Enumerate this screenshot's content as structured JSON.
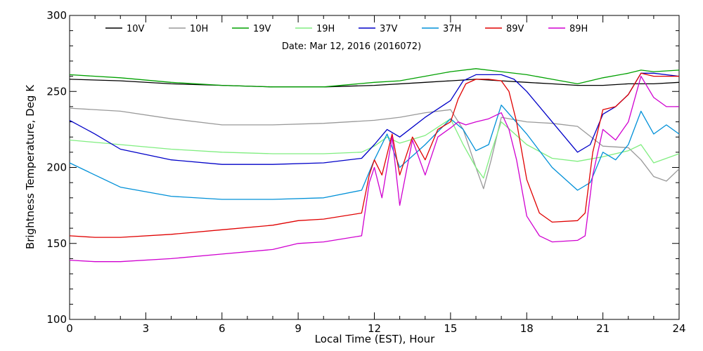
{
  "chart_data": {
    "type": "line",
    "subtitle": "Date: Mar 12, 2016 (2016072)",
    "xlabel": "Local Time (EST), Hour",
    "ylabel": "Brightness Temperature, Deg K",
    "xlim": [
      0,
      24
    ],
    "ylim": [
      100,
      300
    ],
    "xticks": [
      0,
      3,
      6,
      9,
      12,
      15,
      18,
      21,
      24
    ],
    "yticks": [
      100,
      150,
      200,
      250,
      300
    ],
    "xtick_labels": [
      "0",
      "3",
      "6",
      "9",
      "12",
      "15",
      "18",
      "21",
      "24"
    ],
    "ytick_labels": [
      "100",
      "150",
      "200",
      "250",
      "300"
    ],
    "grid": false,
    "legend_position": "top",
    "series": [
      {
        "name": "10V",
        "color": "#000000",
        "x": [
          0,
          2,
          4,
          6,
          8,
          10,
          12,
          14,
          15,
          16,
          17,
          18,
          19,
          20,
          21,
          22,
          23,
          24
        ],
        "y": [
          258,
          257,
          255,
          254,
          253,
          253,
          254,
          256,
          257,
          258,
          257,
          256,
          255,
          254,
          254,
          255,
          255,
          256
        ]
      },
      {
        "name": "10H",
        "color": "#999999",
        "x": [
          0,
          2,
          4,
          6,
          8,
          10,
          12,
          13,
          14,
          15,
          15.5,
          16,
          16.3,
          16.6,
          17,
          18,
          19,
          20,
          21,
          22,
          22.5,
          23,
          23.5,
          24
        ],
        "y": [
          239,
          237,
          232,
          228,
          228,
          229,
          231,
          233,
          236,
          238,
          225,
          200,
          186,
          205,
          233,
          230,
          229,
          227,
          214,
          213,
          205,
          194,
          191,
          199
        ]
      },
      {
        "name": "19V",
        "color": "#00a000",
        "x": [
          0,
          2,
          4,
          6,
          8,
          10,
          12,
          13,
          14,
          15,
          16,
          17,
          18,
          19,
          20,
          21,
          22,
          22.5,
          23,
          24
        ],
        "y": [
          261,
          259,
          256,
          254,
          253,
          253,
          256,
          257,
          260,
          263,
          265,
          263,
          261,
          258,
          255,
          259,
          262,
          264,
          263,
          264
        ]
      },
      {
        "name": "19H",
        "color": "#80ee80",
        "x": [
          0,
          2,
          4,
          6,
          8,
          10,
          11.5,
          12,
          12.5,
          13,
          14,
          15,
          15.5,
          16,
          16.3,
          16.6,
          17,
          18,
          19,
          20,
          21,
          22,
          22.5,
          23,
          24
        ],
        "y": [
          218,
          215,
          212,
          210,
          209,
          209,
          210,
          214,
          220,
          216,
          221,
          232,
          215,
          200,
          193,
          210,
          230,
          215,
          206,
          204,
          207,
          211,
          215,
          203,
          209
        ]
      },
      {
        "name": "37V",
        "color": "#0000c8",
        "x": [
          0,
          1,
          2,
          4,
          6,
          8,
          10,
          11.5,
          12,
          12.5,
          13,
          14,
          15,
          15.5,
          16,
          16.5,
          17,
          17.5,
          18,
          19,
          20,
          20.5,
          21,
          21.5,
          22,
          22.5,
          23,
          24
        ],
        "y": [
          231,
          222,
          212,
          205,
          202,
          202,
          203,
          206,
          215,
          225,
          220,
          233,
          244,
          257,
          261,
          261,
          261,
          258,
          250,
          230,
          210,
          215,
          235,
          240,
          248,
          262,
          262,
          260
        ]
      },
      {
        "name": "37H",
        "color": "#0090d8",
        "x": [
          0,
          1,
          2,
          4,
          6,
          8,
          10,
          11.5,
          12,
          12.5,
          13,
          14,
          15,
          15.5,
          16,
          16.5,
          17,
          18,
          19,
          20,
          20.5,
          21,
          21.5,
          22,
          22.5,
          23,
          23.5,
          24
        ],
        "y": [
          203,
          195,
          187,
          181,
          179,
          179,
          180,
          185,
          205,
          222,
          200,
          215,
          232,
          225,
          211,
          215,
          241,
          222,
          200,
          185,
          190,
          210,
          205,
          215,
          237,
          222,
          228,
          222
        ]
      },
      {
        "name": "89V",
        "color": "#e00000",
        "x": [
          0,
          1,
          2,
          4,
          6,
          8,
          9,
          10,
          11.5,
          11.8,
          12,
          12.3,
          12.7,
          13,
          13.5,
          14,
          14.5,
          15,
          15.3,
          15.6,
          16,
          16.5,
          17,
          17.3,
          17.6,
          18,
          18.5,
          19,
          20,
          20.3,
          20.6,
          21,
          21.5,
          22,
          22.5,
          23,
          24
        ],
        "y": [
          155,
          154,
          154,
          156,
          159,
          162,
          165,
          166,
          170,
          195,
          205,
          195,
          222,
          195,
          220,
          205,
          225,
          230,
          245,
          255,
          258,
          258,
          257,
          250,
          230,
          192,
          170,
          164,
          165,
          170,
          210,
          238,
          240,
          248,
          262,
          260,
          260
        ]
      },
      {
        "name": "89H",
        "color": "#d000d0",
        "x": [
          0,
          1,
          2,
          4,
          6,
          8,
          9,
          10,
          11.5,
          11.8,
          12,
          12.3,
          12.7,
          13,
          13.5,
          14,
          14.5,
          15,
          15.3,
          15.6,
          16,
          16.5,
          17,
          17.3,
          17.6,
          18,
          18.5,
          19,
          20,
          20.3,
          20.6,
          21,
          21.5,
          22,
          22.5,
          23,
          23.5,
          24
        ],
        "y": [
          139,
          138,
          138,
          140,
          143,
          146,
          150,
          151,
          155,
          190,
          200,
          180,
          220,
          175,
          218,
          195,
          220,
          226,
          230,
          228,
          230,
          232,
          236,
          225,
          205,
          168,
          155,
          151,
          152,
          155,
          195,
          225,
          218,
          230,
          260,
          246,
          240,
          240
        ]
      }
    ]
  }
}
